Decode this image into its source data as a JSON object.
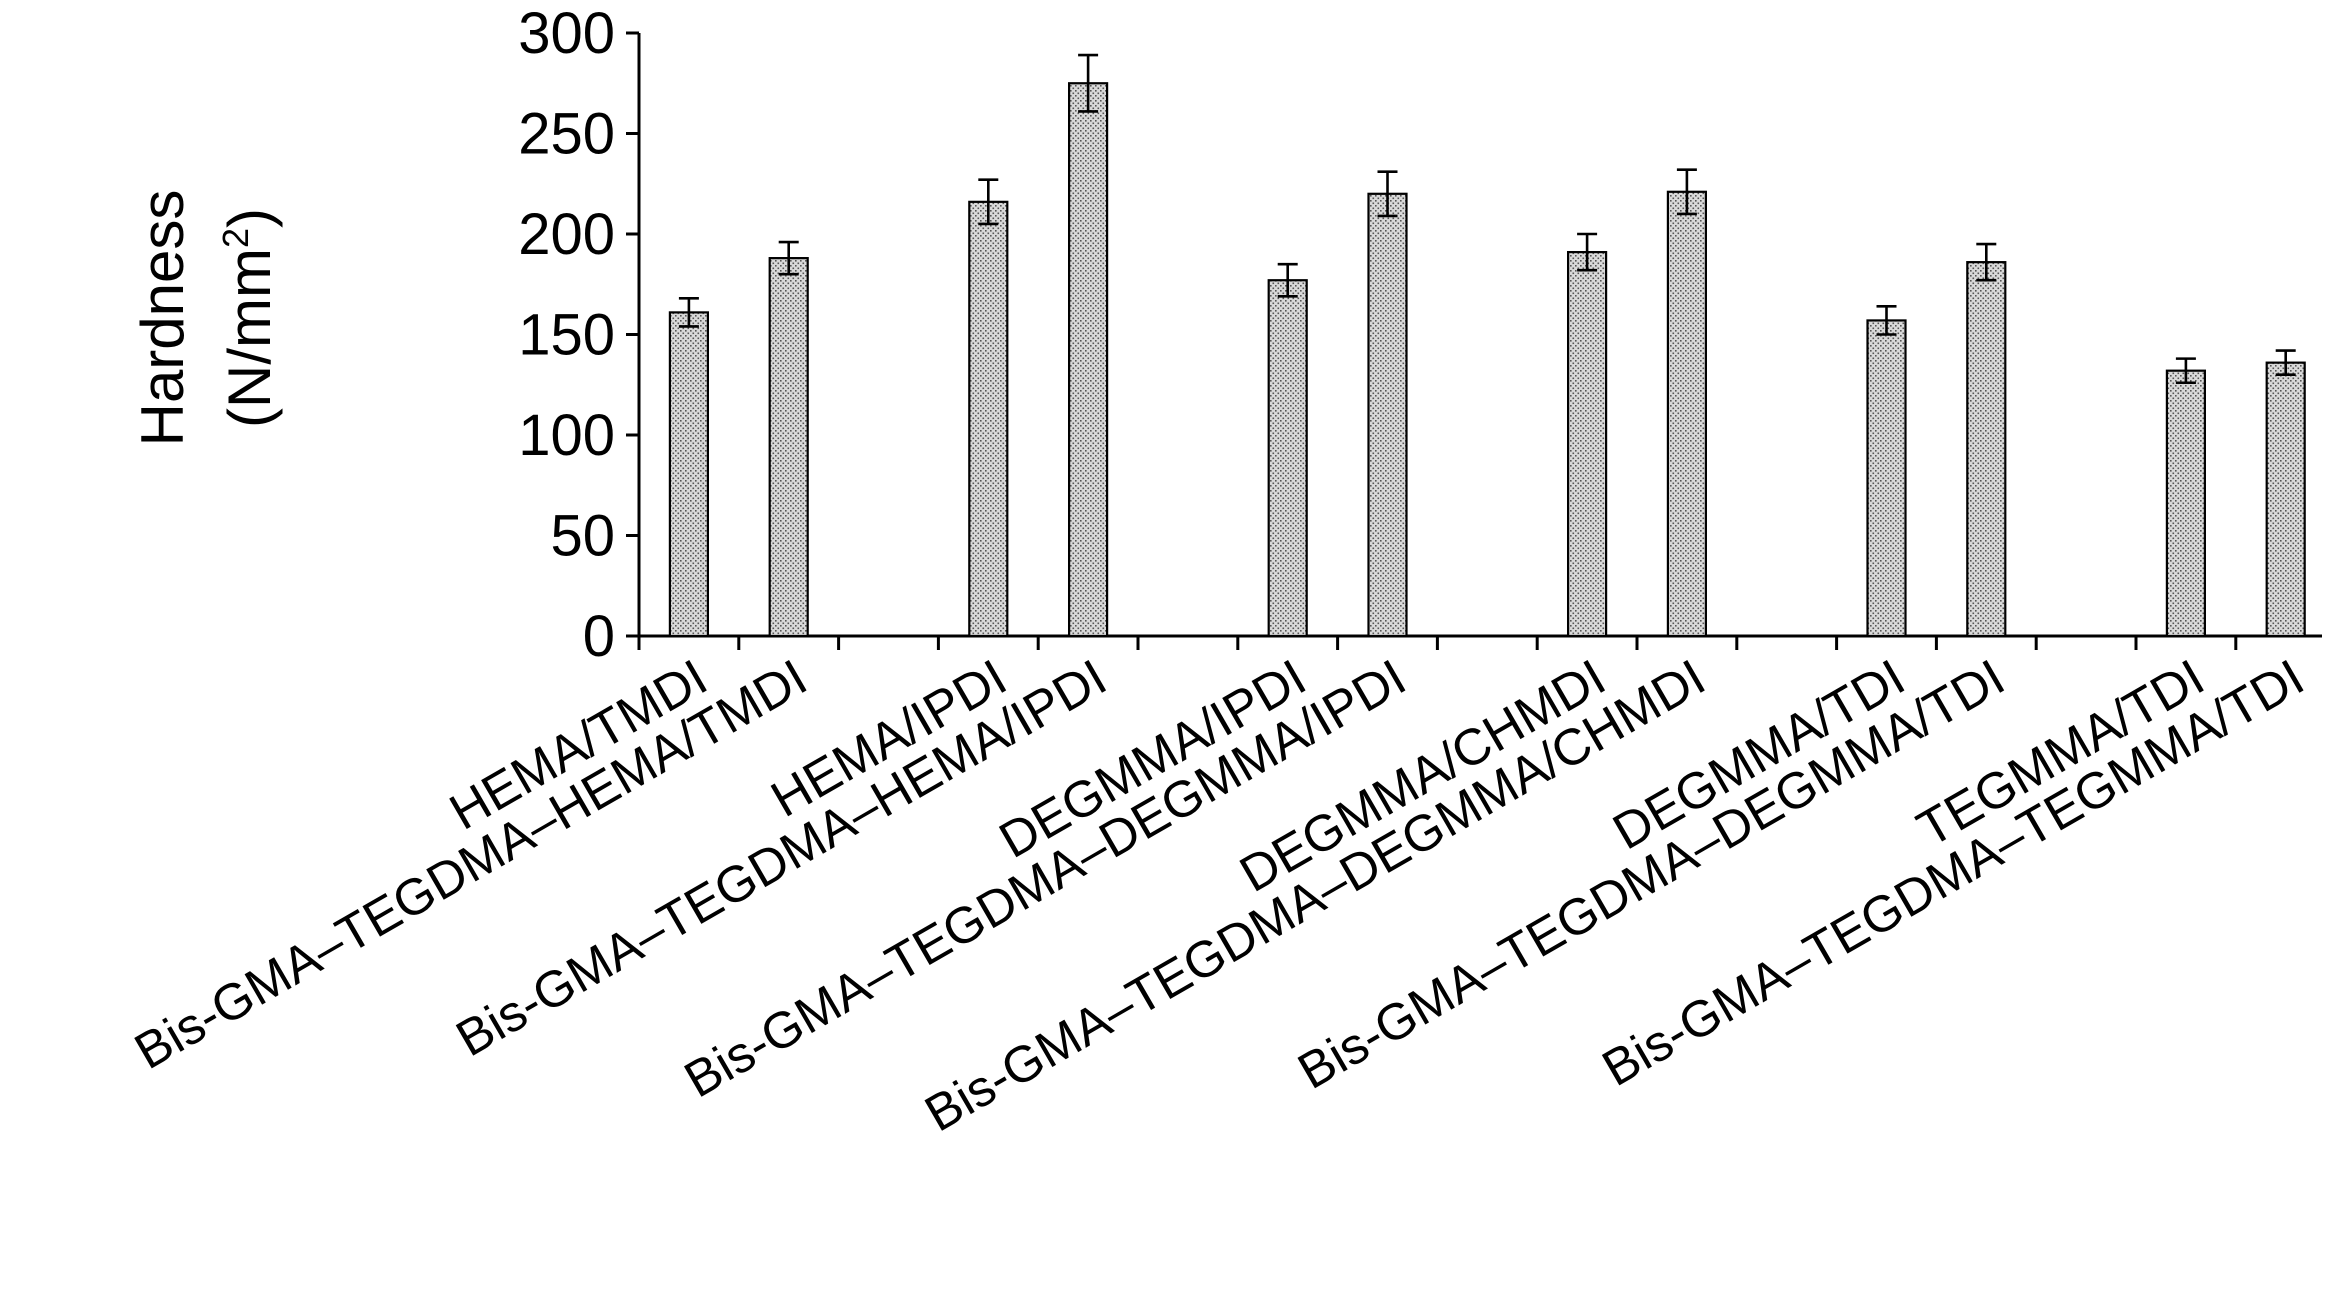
{
  "chart_data": {
    "type": "bar",
    "title": "",
    "ylabel": "Hardness",
    "ylabel_unit_prefix": "(N/mm",
    "ylabel_unit_sup": "2",
    "ylabel_unit_suffix": ")",
    "xlabel": "",
    "ylim": [
      0,
      300
    ],
    "yticks": [
      0,
      50,
      100,
      150,
      200,
      250,
      300
    ],
    "grid": false,
    "legend": "none",
    "bar_fill": "#d9d9d9",
    "categories": [
      "HEMA/TMDI",
      "Bis-GMA–TEGDMA–HEMA/TMDI",
      "HEMA/IPDI",
      "Bis-GMA–TEGDMA–HEMA/IPDI",
      "DEGMMA/IPDI",
      "Bis-GMA–TEGDMA–DEGMMA/IPDI",
      "DEGMMA/CHMDI",
      "Bis-GMA–TEGDMA–DEGMMA/CHMDI",
      "DEGMMA/TDI",
      "Bis-GMA–TEGDMA–DEGMMA/TDI",
      "TEGMMA/TDI",
      "Bis-GMA–TEGDMA–TEGMMA/TDI"
    ],
    "values": [
      161,
      188,
      216,
      275,
      177,
      220,
      191,
      221,
      157,
      186,
      132,
      136
    ],
    "errors": [
      7,
      8,
      11,
      14,
      8,
      11,
      9,
      11,
      7,
      9,
      6,
      6
    ]
  }
}
